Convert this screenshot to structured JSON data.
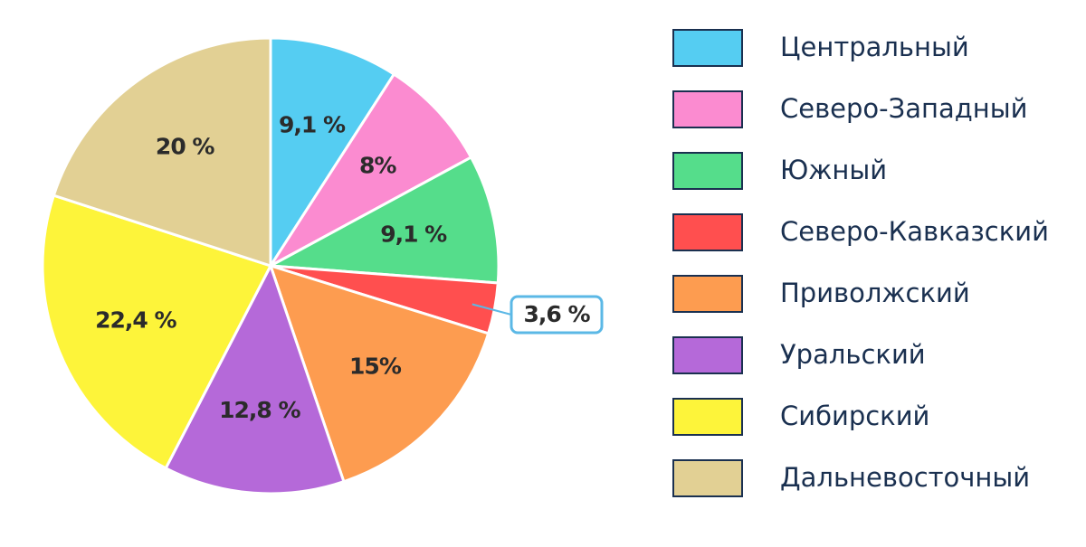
{
  "chart_data": {
    "type": "pie",
    "categories": [
      "Центральный",
      "Северо-Западный",
      "Южный",
      "Северо-Кавказский",
      "Приволжский",
      "Уральский",
      "Сибирский",
      "Дальневосточный"
    ],
    "values": [
      9.1,
      8,
      9.1,
      3.6,
      15,
      12.8,
      22.4,
      20
    ],
    "value_labels": [
      "9,1 %",
      "8%",
      "9,1 %",
      "3,6 %",
      "15%",
      "12,8 %",
      "22,4 %",
      "20 %"
    ],
    "colors": [
      "#55cdf2",
      "#fb8bd0",
      "#55dd8b",
      "#ff4f4f",
      "#fd9c50",
      "#b569d9",
      "#fdf43a",
      "#e2d094"
    ]
  }
}
